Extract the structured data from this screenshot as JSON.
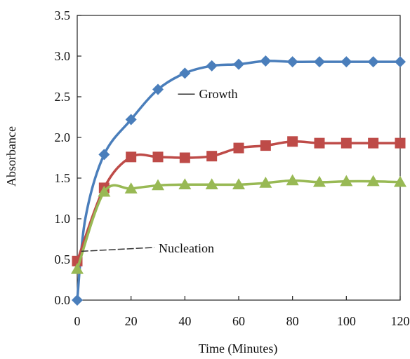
{
  "chart_data": {
    "type": "line",
    "title": "",
    "xlabel": "Time (Minutes)",
    "ylabel": "Absorbance",
    "xlim": [
      0,
      120
    ],
    "ylim": [
      0,
      3.5
    ],
    "xticks": [
      0,
      20,
      40,
      60,
      80,
      100,
      120
    ],
    "xtick_labels": [
      "0",
      "20",
      "40",
      "60",
      "80",
      "100",
      "120"
    ],
    "yticks": [
      0,
      0.5,
      1,
      1.5,
      2,
      2.5,
      3,
      3.5
    ],
    "ytick_labels": [
      "0.0",
      "0.5",
      "1.0",
      "1.5",
      "2.0",
      "2.5",
      "3.0",
      "3.5"
    ],
    "grid": false,
    "legend": "none",
    "series": [
      {
        "color": "#4a7ebb",
        "marker": "diamond",
        "x": [
          0,
          3,
          10,
          20,
          30,
          40,
          50,
          60,
          70,
          80,
          90,
          100,
          110,
          120
        ],
        "y": [
          0.0,
          1.0,
          1.79,
          2.22,
          2.59,
          2.79,
          2.88,
          2.9,
          2.94,
          2.93,
          2.93,
          2.93,
          2.93,
          2.93
        ]
      },
      {
        "color": "#be4b48",
        "marker": "square",
        "x": [
          0,
          10,
          20,
          30,
          40,
          50,
          60,
          70,
          80,
          90,
          100,
          110,
          120
        ],
        "y": [
          0.48,
          1.38,
          1.76,
          1.76,
          1.75,
          1.77,
          1.87,
          1.9,
          1.95,
          1.93,
          1.93,
          1.93,
          1.93
        ]
      },
      {
        "color": "#98b954",
        "marker": "triangle",
        "x": [
          0,
          10,
          20,
          30,
          40,
          50,
          60,
          70,
          80,
          90,
          100,
          110,
          120
        ],
        "y": [
          0.38,
          1.33,
          1.37,
          1.41,
          1.42,
          1.42,
          1.42,
          1.44,
          1.47,
          1.45,
          1.46,
          1.46,
          1.45
        ]
      }
    ],
    "annotations": [
      {
        "text": "Growth",
        "x": 39,
        "y": 2.55
      },
      {
        "text": "Nucleation",
        "x": 24,
        "y": 0.63
      }
    ]
  }
}
